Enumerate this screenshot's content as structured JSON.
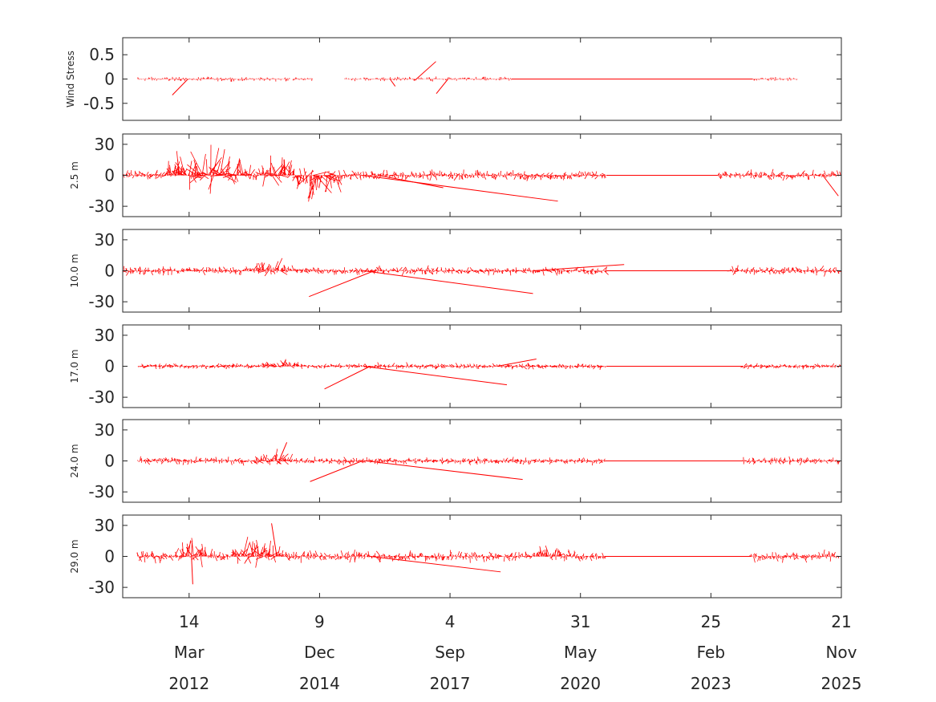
{
  "colors": {
    "vector": "#ff0000",
    "axis": "#262626",
    "background": "#ffffff"
  },
  "chart_data": {
    "type": "stick-vector-time-series",
    "x_axis": {
      "start": "2010-10-22",
      "end": "2025-11-21",
      "ticks": [
        {
          "date": "2012-03-14",
          "day": "14",
          "month": "Mar",
          "year": "2012"
        },
        {
          "date": "2014-12-09",
          "day": "9",
          "month": "Dec",
          "year": "2014"
        },
        {
          "date": "2017-09-04",
          "day": "4",
          "month": "Sep",
          "year": "2017"
        },
        {
          "date": "2020-05-31",
          "day": "31",
          "month": "May",
          "year": "2020"
        },
        {
          "date": "2023-02-25",
          "day": "25",
          "month": "Feb",
          "year": "2023"
        },
        {
          "date": "2025-11-21",
          "day": "21",
          "month": "Nov",
          "year": "2025"
        }
      ]
    },
    "panels": [
      {
        "ylabel": "Wind Stress",
        "ylim": [
          -0.85,
          0.85
        ],
        "yticks": [
          0.5,
          0,
          -0.5
        ],
        "ytick_labels": [
          "0.5",
          "0",
          "-0.5"
        ],
        "data_segments": [
          [
            "2011-02-15",
            "2014-04-25"
          ],
          [
            "2014-05-20",
            "2014-10-20"
          ],
          [
            "2015-06-20",
            "2015-10-30"
          ],
          [
            "2015-11-15",
            "2018-12-20"
          ],
          [
            "2024-01-10",
            "2024-12-20"
          ]
        ],
        "gaps": [
          [
            "2018-12-20",
            "2024-01-10"
          ]
        ],
        "amplitude": 0.06,
        "spikes": [
          {
            "date": "2012-03-05",
            "dx_days": -120,
            "v": -0.33
          },
          {
            "date": "2016-12-20",
            "dx_days": 150,
            "v": 0.36
          },
          {
            "date": "2017-08-20",
            "dx_days": -90,
            "v": -0.3
          },
          {
            "date": "2016-06-01",
            "dx_days": 40,
            "v": -0.15
          }
        ]
      },
      {
        "ylabel": "2.5 m",
        "ylim": [
          -40,
          40
        ],
        "yticks": [
          30,
          0,
          -30
        ],
        "ytick_labels": [
          "30",
          "0",
          "-30"
        ],
        "data_segments": [
          [
            "2010-10-22",
            "2020-12-15"
          ],
          [
            "2023-04-20",
            "2025-11-21"
          ]
        ],
        "gaps": [
          [
            "2020-12-15",
            "2023-04-20"
          ]
        ],
        "amplitude": 7,
        "bursts": [
          {
            "start": "2011-09-01",
            "end": "2013-07-01",
            "amp": 30
          },
          {
            "start": "2013-09-01",
            "end": "2014-06-01",
            "amp": 26
          },
          {
            "start": "2014-06-01",
            "end": "2015-06-01",
            "amp": -30
          }
        ],
        "spikes": [
          {
            "date": "2015-11-01",
            "dx_days": 1500,
            "v": -25
          },
          {
            "date": "2016-03-01",
            "dx_days": 500,
            "v": -12
          },
          {
            "date": "2025-07-01",
            "dx_days": 120,
            "v": -20
          }
        ]
      },
      {
        "ylabel": "10.0 m",
        "ylim": [
          -40,
          40
        ],
        "yticks": [
          30,
          0,
          -30
        ],
        "ytick_labels": [
          "30",
          "0",
          "-30"
        ],
        "data_segments": [
          [
            "2010-10-22",
            "2020-12-15"
          ],
          [
            "2023-08-01",
            "2025-11-21"
          ]
        ],
        "gaps": [
          [
            "2020-12-15",
            "2023-08-01"
          ]
        ],
        "amplitude": 6,
        "bursts": [
          {
            "start": "2013-06-01",
            "end": "2014-06-01",
            "amp": 12
          }
        ],
        "spikes": [
          {
            "date": "2015-11-10",
            "dx_days": 1300,
            "v": -22
          },
          {
            "date": "2016-02-01",
            "dx_days": -500,
            "v": -25
          },
          {
            "date": "2019-06-01",
            "dx_days": 700,
            "v": 6
          }
        ]
      },
      {
        "ylabel": "17.0 m",
        "ylim": [
          -40,
          40
        ],
        "yticks": [
          30,
          0,
          -30
        ],
        "ytick_labels": [
          "30",
          "0",
          "-30"
        ],
        "data_segments": [
          [
            "2011-02-15",
            "2020-12-15"
          ],
          [
            "2023-11-01",
            "2025-11-21"
          ]
        ],
        "gaps": [
          [
            "2020-12-15",
            "2023-11-01"
          ]
        ],
        "amplitude": 4,
        "bursts": [
          {
            "start": "2013-09-01",
            "end": "2014-09-01",
            "amp": 7
          }
        ],
        "spikes": [
          {
            "date": "2015-11-10",
            "dx_days": 1100,
            "v": -18
          },
          {
            "date": "2016-01-01",
            "dx_days": -350,
            "v": -22
          },
          {
            "date": "2018-09-01",
            "dx_days": 300,
            "v": 7
          }
        ]
      },
      {
        "ylabel": "24.0 m",
        "ylim": [
          -40,
          40
        ],
        "yticks": [
          30,
          0,
          -30
        ],
        "ytick_labels": [
          "30",
          "0",
          "-30"
        ],
        "data_segments": [
          [
            "2011-02-15",
            "2020-12-01"
          ],
          [
            "2023-11-01",
            "2025-11-21"
          ]
        ],
        "gaps": [
          [
            "2020-12-01",
            "2023-11-01"
          ]
        ],
        "amplitude": 5,
        "bursts": [
          {
            "start": "2013-08-01",
            "end": "2014-06-01",
            "amp": 12
          }
        ],
        "spikes": [
          {
            "date": "2014-02-01",
            "dx_days": 60,
            "v": 18
          },
          {
            "date": "2015-12-01",
            "dx_days": 1200,
            "v": -18
          },
          {
            "date": "2015-11-01",
            "dx_days": -400,
            "v": -20
          }
        ]
      },
      {
        "ylabel": "29.0 m",
        "ylim": [
          -40,
          40
        ],
        "yticks": [
          30,
          0,
          -30
        ],
        "ytick_labels": [
          "30",
          "0",
          "-30"
        ],
        "data_segments": [
          [
            "2011-02-15",
            "2020-12-01"
          ],
          [
            "2024-01-01",
            "2025-11-01"
          ]
        ],
        "gaps": [
          [
            "2020-12-01",
            "2024-01-01"
          ]
        ],
        "amplitude": 8,
        "bursts": [
          {
            "start": "2011-11-01",
            "end": "2012-09-01",
            "amp": 18
          },
          {
            "start": "2013-02-01",
            "end": "2014-03-01",
            "amp": 22
          },
          {
            "start": "2019-04-01",
            "end": "2020-05-01",
            "amp": 11
          }
        ],
        "spikes": [
          {
            "date": "2014-01-15",
            "dx_days": -40,
            "v": 32
          },
          {
            "date": "2012-04-01",
            "dx_days": 10,
            "v": -27
          },
          {
            "date": "2016-01-01",
            "dx_days": 1000,
            "v": -15
          }
        ]
      }
    ]
  }
}
